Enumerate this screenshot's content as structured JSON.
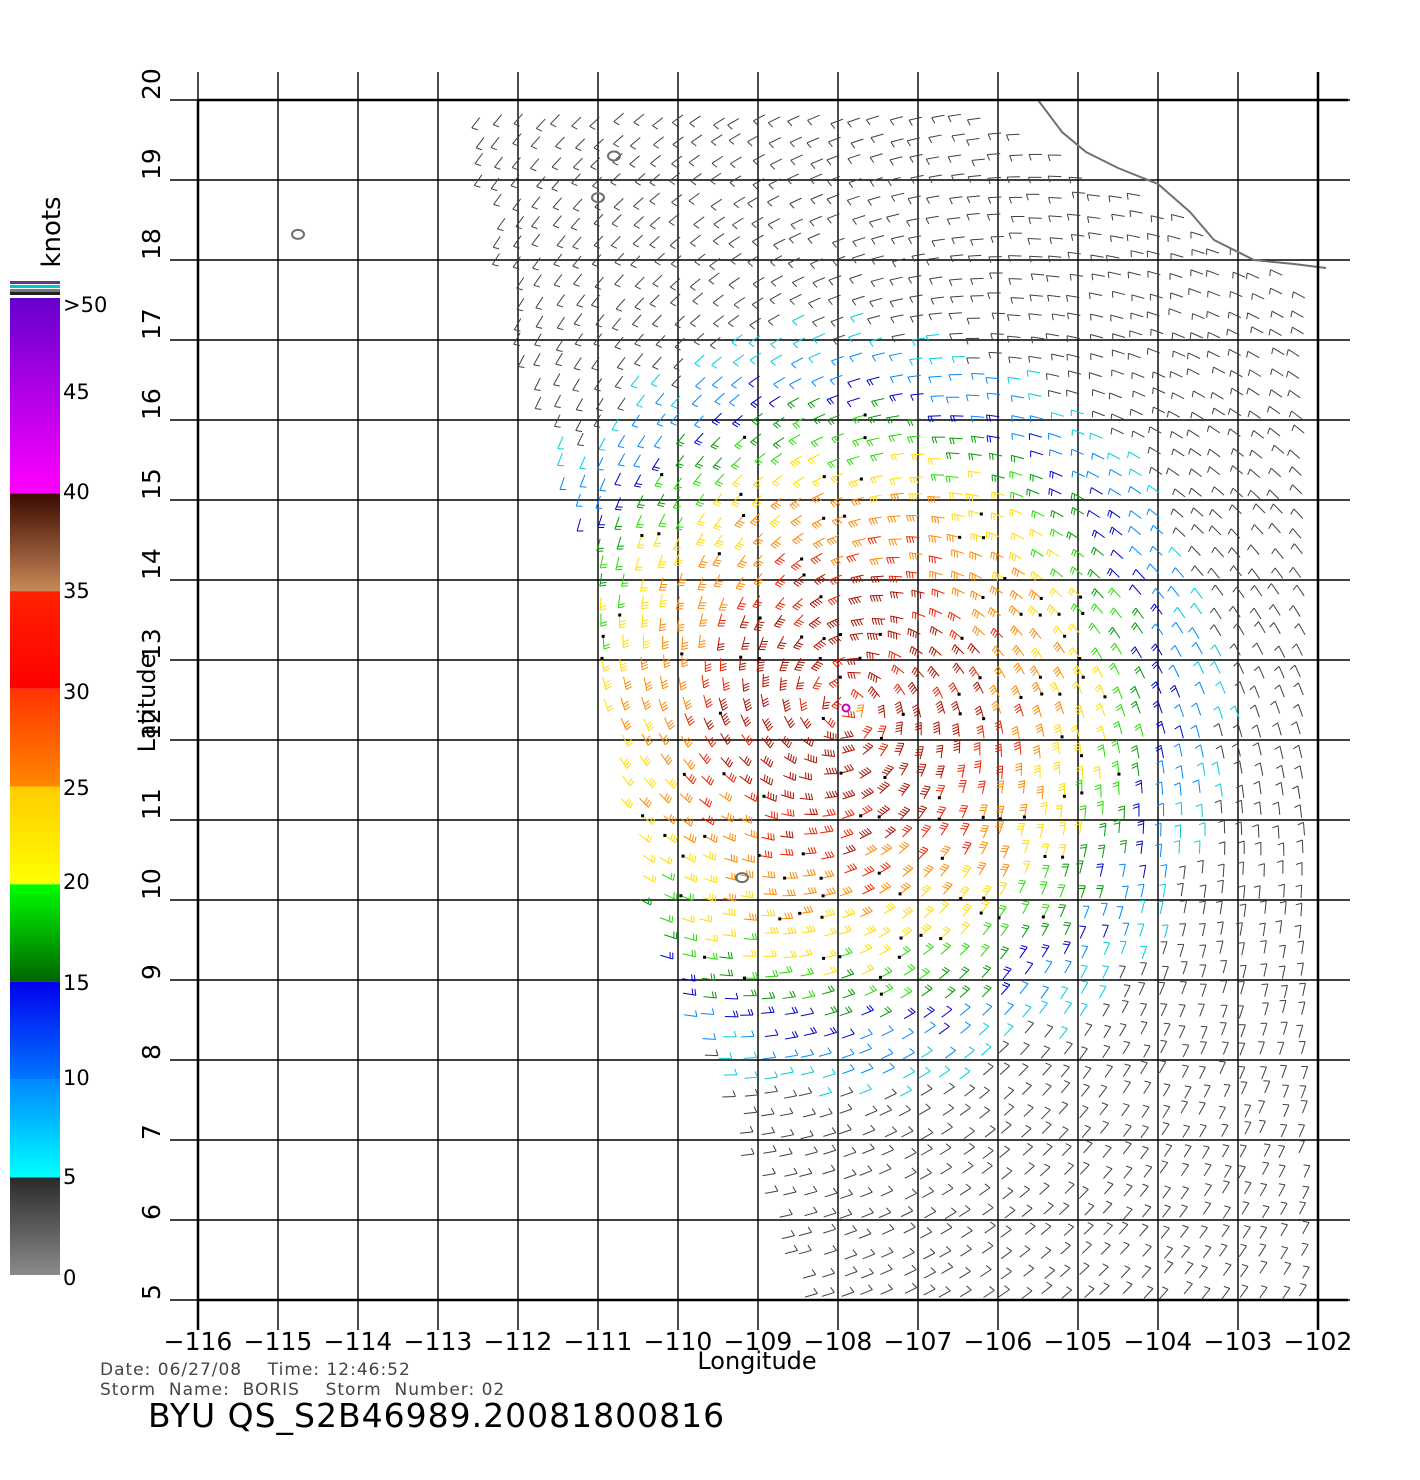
{
  "chart_data": {
    "type": "wind-barb-map",
    "xlabel": "Longitude",
    "ylabel": "Latitude",
    "xlim": [
      -116,
      -102
    ],
    "ylim": [
      5,
      20
    ],
    "x_ticks": [
      "-116",
      "-115",
      "-114",
      "-113",
      "-112",
      "-111",
      "-110",
      "-109",
      "-108",
      "-107",
      "-106",
      "-105",
      "-104",
      "-103",
      "-102"
    ],
    "y_ticks": [
      "20",
      "19",
      "18",
      "17",
      "16",
      "15",
      "14",
      "13",
      "12",
      "11",
      "10",
      "9",
      "8",
      "7",
      "6",
      "5"
    ],
    "grid": true,
    "storm_center": {
      "lon": -107.9,
      "lat": 12.4
    },
    "peak_wind_knots": 35,
    "colorbar": {
      "title": "knots",
      "top_label": ">50",
      "labels": [
        "45",
        "40",
        "35",
        "30",
        "25",
        "20",
        "15",
        "10",
        "5",
        "0"
      ],
      "bands": [
        {
          "from": 0,
          "to": 5,
          "colors": [
            "#8a8a8a",
            "#2a2a2a"
          ]
        },
        {
          "from": 5,
          "to": 10,
          "colors": [
            "#00ffff",
            "#0088ff"
          ]
        },
        {
          "from": 10,
          "to": 15,
          "colors": [
            "#0077ff",
            "#0000ee"
          ]
        },
        {
          "from": 15,
          "to": 20,
          "colors": [
            "#006400",
            "#00ff00"
          ]
        },
        {
          "from": 20,
          "to": 25,
          "colors": [
            "#ffff00",
            "#ffcc00"
          ]
        },
        {
          "from": 25,
          "to": 30,
          "colors": [
            "#ff8800",
            "#ff3300"
          ]
        },
        {
          "from": 30,
          "to": 35,
          "colors": [
            "#ff0000",
            "#ff2200"
          ]
        },
        {
          "from": 35,
          "to": 40,
          "colors": [
            "#c88858",
            "#3a0a00"
          ]
        },
        {
          "from": 40,
          "to": 50,
          "colors": [
            "#ff00ff",
            "#6600cc"
          ]
        }
      ],
      "speed_color_stops": [
        {
          "v": 3,
          "color": "#404040"
        },
        {
          "v": 7,
          "color": "#00ccdd"
        },
        {
          "v": 10,
          "color": "#0088ff"
        },
        {
          "v": 14,
          "color": "#0000cc"
        },
        {
          "v": 17,
          "color": "#009900"
        },
        {
          "v": 20,
          "color": "#22dd00"
        },
        {
          "v": 23,
          "color": "#ffdd00"
        },
        {
          "v": 27,
          "color": "#ff8800"
        },
        {
          "v": 31,
          "color": "#ee2200"
        },
        {
          "v": 34,
          "color": "#aa1100"
        }
      ]
    },
    "swath_lon_lat": [
      [
        -112.7,
        20
      ],
      [
        -106.5,
        20
      ],
      [
        -101.7,
        17.5
      ],
      [
        -101.7,
        4.9
      ],
      [
        -108.5,
        4.9
      ],
      [
        -109.5,
        7.5
      ],
      [
        -110.5,
        10
      ],
      [
        -111.1,
        13.3
      ],
      [
        -111.0,
        14
      ],
      [
        -112.0,
        17
      ],
      [
        -112.7,
        20
      ]
    ],
    "coastline_lon_lat": [
      [
        -105.5,
        20
      ],
      [
        -105.2,
        19.6
      ],
      [
        -104.9,
        19.35
      ],
      [
        -104.5,
        19.15
      ],
      [
        -104.0,
        18.95
      ],
      [
        -103.6,
        18.6
      ],
      [
        -103.3,
        18.25
      ],
      [
        -102.8,
        18.0
      ],
      [
        -102.3,
        17.95
      ],
      [
        -101.9,
        17.9
      ]
    ],
    "islands_lon_lat": [
      [
        -114.75,
        18.32
      ],
      [
        -111.0,
        18.78
      ],
      [
        -110.8,
        19.3
      ],
      [
        -109.2,
        10.28
      ]
    ]
  },
  "footer": {
    "date_time": "Date: 06/27/08    Time: 12:46:52",
    "storm": "Storm  Name:  BORIS    Storm  Number: 02",
    "file_label": "BYU  QS_S2B46989.20081800816"
  }
}
